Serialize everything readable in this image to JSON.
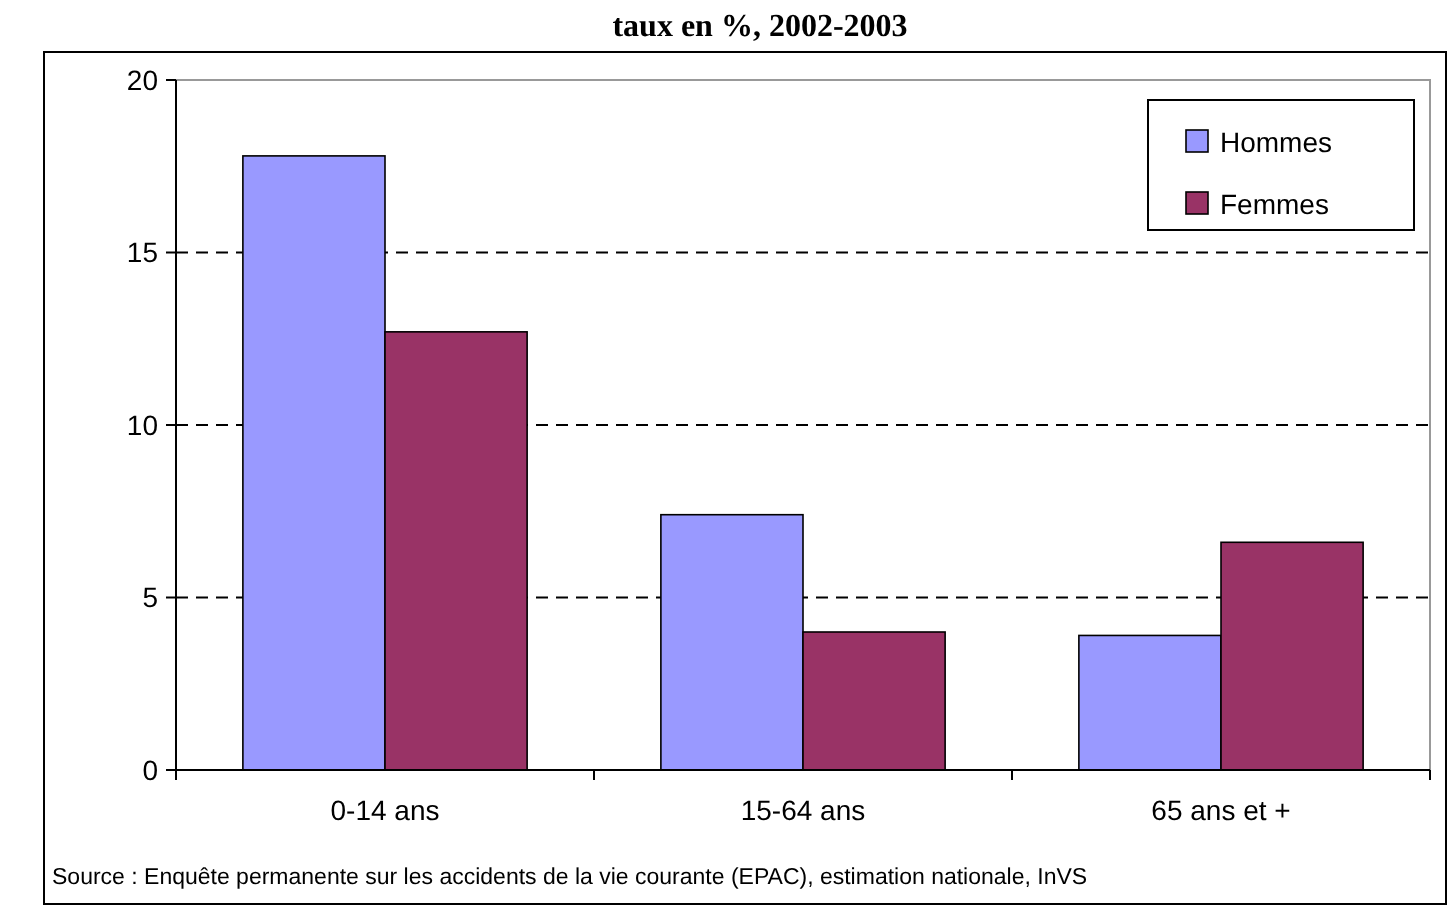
{
  "chart_data": {
    "type": "bar",
    "title": "taux en %, 2002-2003",
    "categories": [
      "0-14 ans",
      "15-64 ans",
      "65 ans et +"
    ],
    "series": [
      {
        "name": "Hommes",
        "color": "#9999ff",
        "values": [
          17.8,
          7.4,
          3.9
        ]
      },
      {
        "name": "Femmes",
        "color": "#993366",
        "values": [
          12.7,
          4.0,
          6.6
        ]
      }
    ],
    "ylim": [
      0,
      20
    ],
    "yticks": [
      0,
      5,
      10,
      15,
      20
    ],
    "grid": "y",
    "legend": "top right",
    "annotations": [
      "Source : Enquête permanente sur les accidents de la vie courante (EPAC), estimation nationale, InVS"
    ]
  }
}
